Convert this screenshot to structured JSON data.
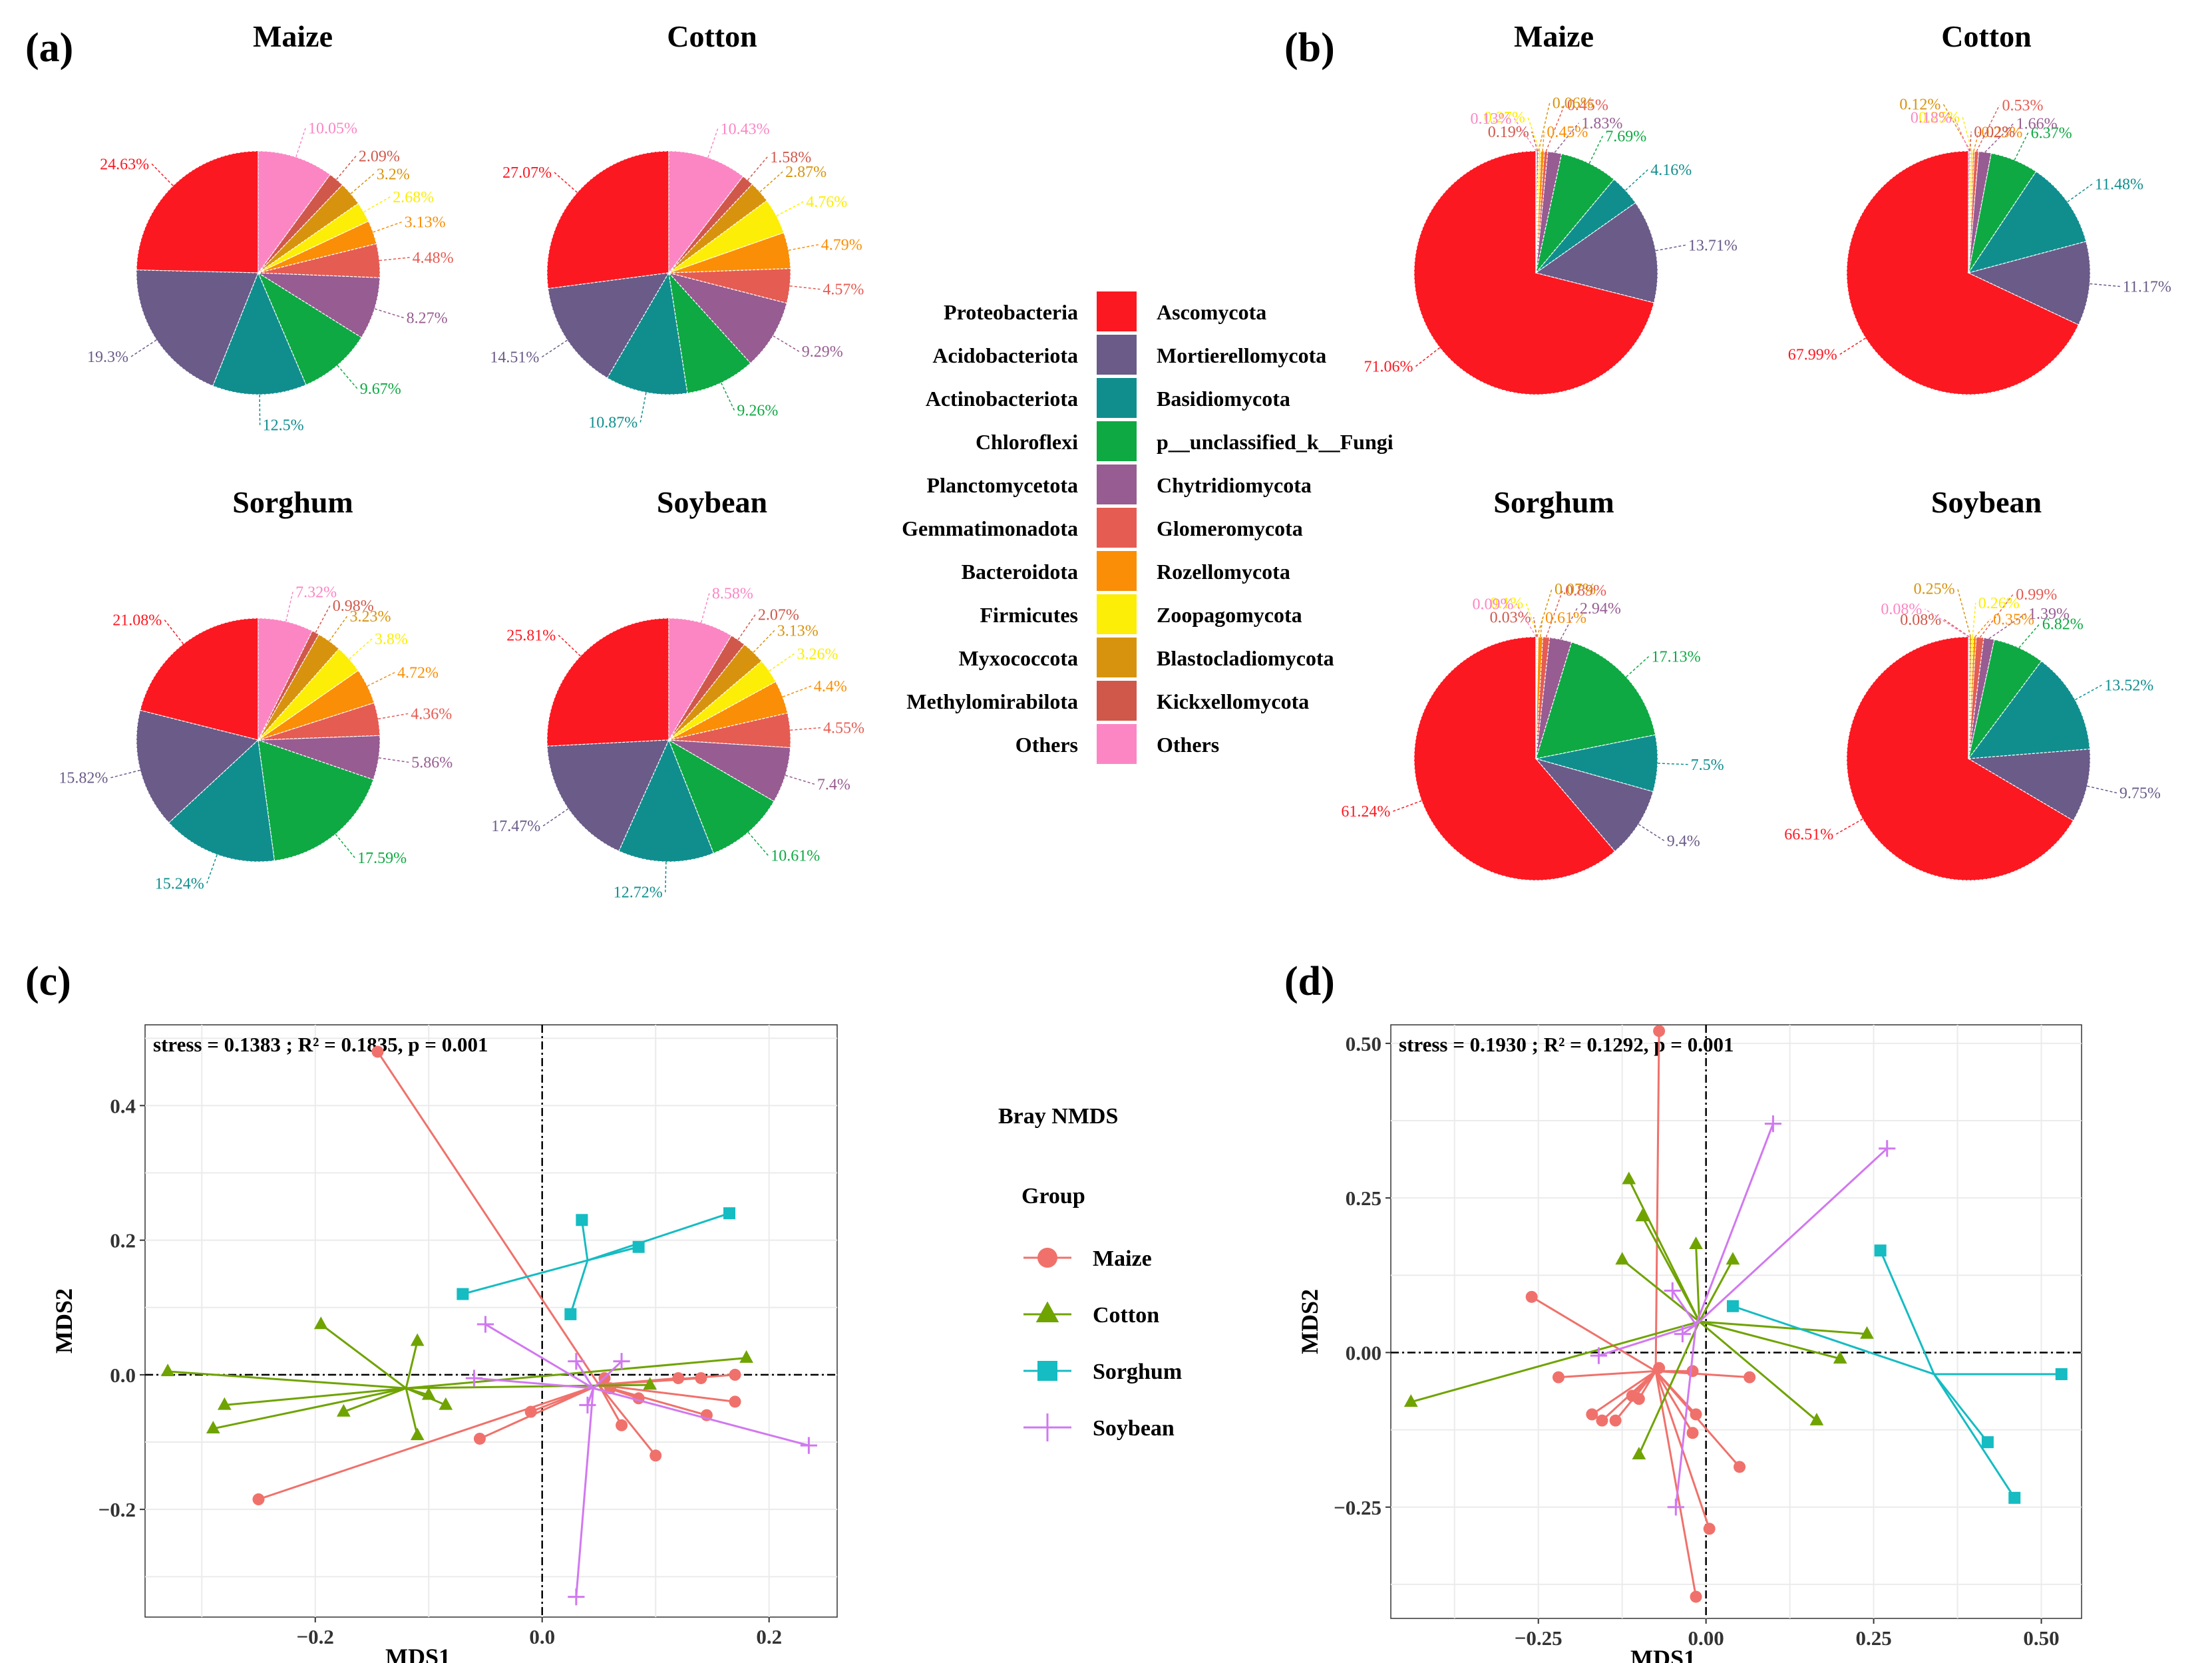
{
  "panels": [
    "(a)",
    "(b)",
    "(c)",
    "(d)"
  ],
  "colors": {
    "bacteria": [
      "#fc1821",
      "#6a5b88",
      "#108e8e",
      "#0ea943",
      "#975c91",
      "#e55c53",
      "#fa8e06",
      "#fcee06",
      "#d8930e",
      "#d0584b",
      "#fc86c4"
    ],
    "fungi": [
      "#fc1821",
      "#6a5b88",
      "#108e8e",
      "#0ea943",
      "#975c91",
      "#e55c53",
      "#fa8e06",
      "#fcee06",
      "#d8930e",
      "#d0584b",
      "#fc86c4"
    ],
    "groups": {
      "Maize": "#f0716b",
      "Cotton": "#6fa300",
      "Sorghum": "#15bcc2",
      "Soybean": "#d178f0"
    }
  },
  "legend": {
    "bacteria": [
      "Proteobacteria",
      "Acidobacteriota",
      "Actinobacteriota",
      "Chloroflexi",
      "Planctomycetota",
      "Gemmatimonadota",
      "Bacteroidota",
      "Firmicutes",
      "Myxococcota",
      "Methylomirabilota",
      "Others"
    ],
    "fungi": [
      "Ascomycota",
      "Mortierellomycota",
      "Basidiomycota",
      "p__unclassified_k__Fungi",
      "Chytridiomycota",
      "Glomeromycota",
      "Rozellomycota",
      "Zoopagomycota",
      "Blastocladiomycota",
      "Kickxellomycota",
      "Others"
    ]
  },
  "chart_data": [
    {
      "type": "pie",
      "panel": "(a)",
      "title": "Maize",
      "categories": [
        "Proteobacteria",
        "Acidobacteriota",
        "Actinobacteriota",
        "Chloroflexi",
        "Planctomycetota",
        "Gemmatimonadota",
        "Bacteroidota",
        "Firmicutes",
        "Myxococcota",
        "Methylomirabilota",
        "Others"
      ],
      "values": [
        24.63,
        19.3,
        12.5,
        9.67,
        8.27,
        4.48,
        3.13,
        2.68,
        3.2,
        2.09,
        10.05
      ],
      "labels": [
        "24.63%",
        "19.3%",
        "12.5%",
        "9.67%",
        "8.27%",
        "4.48%",
        "3.13%",
        "2.68%",
        "3.2%",
        "2.09%",
        "10.05%"
      ]
    },
    {
      "type": "pie",
      "panel": "(a)",
      "title": "Cotton",
      "categories": [
        "Proteobacteria",
        "Acidobacteriota",
        "Actinobacteriota",
        "Chloroflexi",
        "Planctomycetota",
        "Gemmatimonadota",
        "Bacteroidota",
        "Firmicutes",
        "Myxococcota",
        "Methylomirabilota",
        "Others"
      ],
      "values": [
        27.07,
        14.51,
        10.87,
        9.26,
        9.29,
        4.57,
        4.79,
        4.76,
        2.87,
        1.58,
        10.43
      ],
      "labels": [
        "27.07%",
        "14.51%",
        "10.87%",
        "9.26%",
        "9.29%",
        "4.57%",
        "4.79%",
        "4.76%",
        "2.87%",
        "1.58%",
        "10.43%"
      ]
    },
    {
      "type": "pie",
      "panel": "(a)",
      "title": "Sorghum",
      "categories": [
        "Proteobacteria",
        "Acidobacteriota",
        "Actinobacteriota",
        "Chloroflexi",
        "Planctomycetota",
        "Gemmatimonadota",
        "Bacteroidota",
        "Firmicutes",
        "Myxococcota",
        "Methylomirabilota",
        "Others"
      ],
      "values": [
        21.08,
        15.82,
        15.24,
        17.59,
        5.86,
        4.36,
        4.72,
        3.8,
        3.23,
        0.98,
        7.32
      ],
      "labels": [
        "21.08%",
        "15.82%",
        "15.24%",
        "17.59%",
        "5.86%",
        "4.36%",
        "4.72%",
        "3.8%",
        "3.23%",
        "0.98%",
        "7.32%"
      ]
    },
    {
      "type": "pie",
      "panel": "(a)",
      "title": "Soybean",
      "categories": [
        "Proteobacteria",
        "Acidobacteriota",
        "Actinobacteriota",
        "Chloroflexi",
        "Planctomycetota",
        "Gemmatimonadota",
        "Bacteroidota",
        "Firmicutes",
        "Myxococcota",
        "Methylomirabilota",
        "Others"
      ],
      "values": [
        25.81,
        17.47,
        12.72,
        10.61,
        7.4,
        4.55,
        4.4,
        3.26,
        3.13,
        2.07,
        8.58
      ],
      "labels": [
        "25.81%",
        "17.47%",
        "12.72%",
        "10.61%",
        "7.4%",
        "4.55%",
        "4.4%",
        "3.26%",
        "3.13%",
        "2.07%",
        "8.58%"
      ]
    },
    {
      "type": "pie",
      "panel": "(b)",
      "title": "Maize",
      "categories": [
        "Ascomycota",
        "Mortierellomycota",
        "Basidiomycota",
        "p__unclassified_k__Fungi",
        "Chytridiomycota",
        "Glomeromycota",
        "Rozellomycota",
        "Zoopagomycota",
        "Blastocladiomycota",
        "Kickxellomycota",
        "Others"
      ],
      "values": [
        71.06,
        13.71,
        4.16,
        7.69,
        1.83,
        0.45,
        0.45,
        0.27,
        0.06,
        0.19,
        0.13
      ],
      "labels": [
        "71.06%",
        "13.71%",
        "4.16%",
        "7.69%",
        "1.83%",
        "0.45%",
        "0.45%",
        "0.27%",
        "0.06%",
        "0.19%",
        "0.13%"
      ]
    },
    {
      "type": "pie",
      "panel": "(b)",
      "title": "Cotton",
      "categories": [
        "Ascomycota",
        "Mortierellomycota",
        "Basidiomycota",
        "p__unclassified_k__Fungi",
        "Chytridiomycota",
        "Glomeromycota",
        "Rozellomycota",
        "Zoopagomycota",
        "Blastocladiomycota",
        "Kickxellomycota",
        "Others"
      ],
      "values": [
        67.99,
        11.17,
        11.48,
        6.37,
        1.66,
        0.53,
        0.23,
        0.25,
        0.12,
        0.02,
        0.18
      ],
      "labels": [
        "67.99%",
        "11.17%",
        "11.48%",
        "6.37%",
        "1.66%",
        "0.53%",
        "0.23%",
        "0.25%",
        "0.12%",
        "0.02%",
        "0.18%"
      ]
    },
    {
      "type": "pie",
      "panel": "(b)",
      "title": "Sorghum",
      "categories": [
        "Ascomycota",
        "Mortierellomycota",
        "Basidiomycota",
        "p__unclassified_k__Fungi",
        "Chytridiomycota",
        "Glomeromycota",
        "Rozellomycota",
        "Zoopagomycota",
        "Blastocladiomycota",
        "Kickxellomycota",
        "Others"
      ],
      "values": [
        61.24,
        9.4,
        7.5,
        17.13,
        2.94,
        0.89,
        0.61,
        0.1,
        0.07,
        0.03,
        0.09
      ],
      "labels": [
        "61.24%",
        "9.4%",
        "7.5%",
        "17.13%",
        "2.94%",
        "0.89%",
        "0.61%",
        "0.1%",
        "0.07%",
        "0.03%",
        "0.09%"
      ]
    },
    {
      "type": "pie",
      "panel": "(b)",
      "title": "Soybean",
      "categories": [
        "Ascomycota",
        "Mortierellomycota",
        "Basidiomycota",
        "p__unclassified_k__Fungi",
        "Chytridiomycota",
        "Glomeromycota",
        "Rozellomycota",
        "Zoopagomycota",
        "Blastocladiomycota",
        "Kickxellomycota",
        "Others"
      ],
      "values": [
        66.51,
        9.75,
        13.52,
        6.82,
        1.39,
        0.99,
        0.35,
        0.26,
        0.25,
        0.08,
        0.08
      ],
      "labels": [
        "66.51%",
        "9.75%",
        "13.52%",
        "6.82%",
        "1.39%",
        "0.99%",
        "0.35%",
        "0.26%",
        "0.25%",
        "0.08%",
        "0.08%"
      ]
    },
    {
      "type": "scatter",
      "panel": "(c)",
      "annotation": "stress = 0.1383 ; R²  = 0.1835, p = 0.001",
      "xlabel": "MDS1",
      "ylabel": "MDS2",
      "xlim": [
        -0.35,
        0.26
      ],
      "ylim": [
        -0.36,
        0.52
      ],
      "xticks": [
        -0.2,
        0.0,
        0.2
      ],
      "xtick_labels": [
        "−0.2",
        "0.0",
        "0.2"
      ],
      "yticks": [
        -0.2,
        0.0,
        0.2,
        0.4
      ],
      "ytick_labels": [
        "−0.2",
        "0.0",
        "0.2",
        "0.4"
      ],
      "ref_lines": {
        "x": 0.0,
        "y": 0.0
      },
      "series": [
        {
          "name": "Maize",
          "marker": "circle",
          "centroid": [
            0.05,
            -0.015
          ],
          "points": [
            [
              -0.145,
              0.48
            ],
            [
              -0.25,
              -0.185
            ],
            [
              -0.055,
              -0.095
            ],
            [
              -0.01,
              -0.055
            ],
            [
              0.055,
              -0.005
            ],
            [
              0.07,
              -0.075
            ],
            [
              0.1,
              -0.12
            ],
            [
              0.085,
              -0.035
            ],
            [
              0.145,
              -0.06
            ],
            [
              0.17,
              -0.04
            ],
            [
              0.12,
              -0.005
            ],
            [
              0.14,
              -0.005
            ],
            [
              0.17,
              0.0
            ],
            [
              0.06,
              -0.02
            ]
          ]
        },
        {
          "name": "Cotton",
          "marker": "triangle",
          "centroid": [
            -0.12,
            -0.02
          ],
          "points": [
            [
              -0.33,
              0.005
            ],
            [
              -0.29,
              -0.08
            ],
            [
              -0.28,
              -0.045
            ],
            [
              -0.195,
              0.075
            ],
            [
              -0.175,
              -0.055
            ],
            [
              -0.11,
              0.05
            ],
            [
              -0.11,
              -0.09
            ],
            [
              -0.1,
              -0.03
            ],
            [
              -0.085,
              -0.045
            ],
            [
              0.18,
              0.025
            ],
            [
              0.095,
              -0.015
            ]
          ]
        },
        {
          "name": "Sorghum",
          "marker": "square",
          "centroid": [
            0.04,
            0.17
          ],
          "points": [
            [
              -0.07,
              0.12
            ],
            [
              0.035,
              0.23
            ],
            [
              0.025,
              0.09
            ],
            [
              0.085,
              0.19
            ],
            [
              0.165,
              0.24
            ]
          ]
        },
        {
          "name": "Soybean",
          "marker": "plus",
          "centroid": [
            0.045,
            -0.02
          ],
          "points": [
            [
              -0.05,
              0.075
            ],
            [
              -0.06,
              -0.005
            ],
            [
              0.03,
              0.02
            ],
            [
              0.07,
              0.02
            ],
            [
              0.04,
              -0.045
            ],
            [
              0.03,
              -0.33
            ],
            [
              0.235,
              -0.105
            ]
          ]
        }
      ]
    },
    {
      "type": "scatter",
      "panel": "(d)",
      "annotation": "stress = 0.1930 ; R² = 0.1292, p = 0.001",
      "xlabel": "MDS1",
      "ylabel": "MDS2",
      "xlim": [
        -0.47,
        0.56
      ],
      "ylim": [
        -0.43,
        0.53
      ],
      "xticks": [
        -0.25,
        0.0,
        0.25,
        0.5
      ],
      "xtick_labels": [
        "−0.25",
        "0.00",
        "0.25",
        "0.50"
      ],
      "yticks": [
        -0.25,
        0.0,
        0.25,
        0.5
      ],
      "ytick_labels": [
        "−0.25",
        "0.00",
        "0.25",
        "0.50"
      ],
      "ref_lines": {
        "x": 0.0,
        "y": 0.0
      },
      "series": [
        {
          "name": "Maize",
          "marker": "circle",
          "centroid": [
            -0.075,
            -0.03
          ],
          "points": [
            [
              -0.07,
              0.52
            ],
            [
              -0.26,
              0.09
            ],
            [
              -0.22,
              -0.04
            ],
            [
              -0.17,
              -0.1
            ],
            [
              -0.155,
              -0.11
            ],
            [
              -0.135,
              -0.11
            ],
            [
              -0.11,
              -0.07
            ],
            [
              -0.1,
              -0.075
            ],
            [
              -0.02,
              -0.13
            ],
            [
              -0.015,
              -0.1
            ],
            [
              0.005,
              -0.285
            ],
            [
              -0.015,
              -0.395
            ],
            [
              0.065,
              -0.04
            ],
            [
              0.05,
              -0.185
            ],
            [
              -0.02,
              -0.03
            ],
            [
              -0.07,
              -0.025
            ]
          ]
        },
        {
          "name": "Cotton",
          "marker": "triangle",
          "centroid": [
            -0.01,
            0.05
          ],
          "points": [
            [
              -0.44,
              -0.08
            ],
            [
              -0.115,
              0.28
            ],
            [
              -0.095,
              0.22
            ],
            [
              -0.125,
              0.15
            ],
            [
              -0.1,
              -0.165
            ],
            [
              -0.015,
              0.175
            ],
            [
              0.04,
              0.15
            ],
            [
              0.165,
              -0.11
            ],
            [
              0.2,
              -0.01
            ],
            [
              0.24,
              0.03
            ]
          ]
        },
        {
          "name": "Sorghum",
          "marker": "square",
          "centroid": [
            0.34,
            -0.035
          ],
          "points": [
            [
              0.26,
              0.165
            ],
            [
              0.53,
              -0.035
            ],
            [
              0.42,
              -0.145
            ],
            [
              0.46,
              -0.235
            ],
            [
              0.04,
              0.075
            ]
          ]
        },
        {
          "name": "Soybean",
          "marker": "plus",
          "centroid": [
            -0.015,
            0.045
          ],
          "points": [
            [
              0.1,
              0.37
            ],
            [
              0.27,
              0.33
            ],
            [
              -0.05,
              0.1
            ],
            [
              -0.16,
              -0.005
            ],
            [
              -0.045,
              -0.25
            ],
            [
              -0.035,
              0.03
            ]
          ]
        }
      ]
    }
  ],
  "legend_cd": {
    "title": "Bray NMDS",
    "group_title": "Group",
    "items": [
      "Maize",
      "Cotton",
      "Sorghum",
      "Soybean"
    ]
  }
}
